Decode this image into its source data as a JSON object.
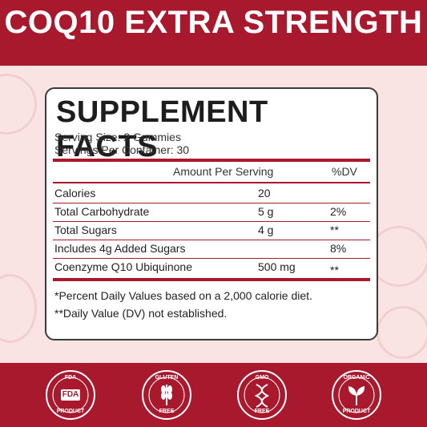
{
  "header": {
    "title": "COQ10 EXTRA STRENGTH"
  },
  "facts": {
    "title": "SUPPLEMENT FACTS",
    "serving_size": "Serving Size: 2 Gummies",
    "servings_per_container": "Servings Per Container: 30",
    "col_amount": "Amount Per Serving",
    "col_dv": "%DV",
    "rows": [
      {
        "name": "Calories",
        "amount": "20",
        "dv": ""
      },
      {
        "name": "Total Carbohydrate",
        "amount": "5 g",
        "dv": "2%"
      },
      {
        "name": "Total Sugars",
        "amount": "4 g",
        "dv": "**"
      },
      {
        "name": "Includes 4g Added Sugars",
        "amount": "",
        "dv": "8%"
      },
      {
        "name": "Coenzyme Q10 Ubiquinone",
        "amount": "500 mg",
        "dv": "**"
      }
    ],
    "note1": "*Percent Daily Values based on a 2,000 calorie diet.",
    "note2": "**Daily Value (DV) not established."
  },
  "badges": [
    {
      "top": "FDA",
      "center": "FDA",
      "bottom": "PRODUCT",
      "icon": "fda-icon"
    },
    {
      "top": "GLUTEN",
      "center": "",
      "bottom": "FREE",
      "icon": "wheat-icon"
    },
    {
      "top": "GMO",
      "center": "",
      "bottom": "FREE",
      "icon": "dna-icon"
    },
    {
      "top": "ORGANIC",
      "center": "",
      "bottom": "PRODUCT",
      "icon": "leaf-icon"
    }
  ],
  "colors": {
    "brand_red": "#a8192e",
    "panel_bg": "#ffffff",
    "mid_bg": "#f9e3e3"
  }
}
